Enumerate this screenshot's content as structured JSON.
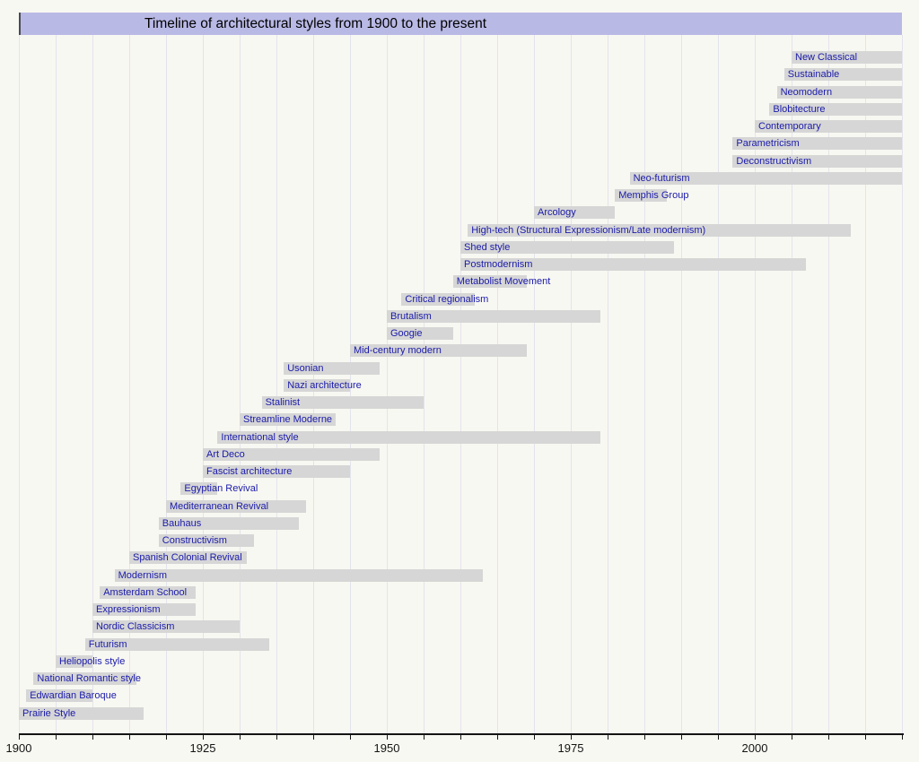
{
  "colors": {
    "page_bg": "#f8f8f2",
    "title_bg": "#b9b9e6",
    "title_border": "#4a4a55",
    "title_text": "#000000",
    "bar_fill": "#d6d6d6",
    "bar_label": "#1a1aaa",
    "gridline": "#e3e3ed",
    "axis_line": "#141414",
    "tick_label": "#141414"
  },
  "chart_data": {
    "type": "bar",
    "variant": "horizontal-timeline",
    "title": "Timeline of architectural styles from 1900 to the present",
    "xlabel": "",
    "ylabel": "",
    "x_axis": {
      "min": 1900,
      "max": 2020,
      "gridline_interval_years": 5,
      "tick_interval_years": 5,
      "tick_labels": [
        "1900",
        "1925",
        "1950",
        "1975",
        "2000"
      ],
      "tick_label_years": [
        1900,
        1925,
        1950,
        1975,
        2000
      ]
    },
    "legend": "none",
    "grid": "vertical-on",
    "note": "bars ending at 2020 run to the present (right edge of chart)",
    "styles": [
      {
        "label": "New Classical",
        "from": 2005,
        "till": 2020
      },
      {
        "label": "Sustainable",
        "from": 2004,
        "till": 2020
      },
      {
        "label": "Neomodern",
        "from": 2003,
        "till": 2020
      },
      {
        "label": "Blobitecture",
        "from": 2002,
        "till": 2020
      },
      {
        "label": "Contemporary",
        "from": 2000,
        "till": 2020
      },
      {
        "label": "Parametricism",
        "from": 1997,
        "till": 2020
      },
      {
        "label": "Deconstructivism",
        "from": 1997,
        "till": 2020
      },
      {
        "label": "Neo-futurism",
        "from": 1983,
        "till": 2020
      },
      {
        "label": "Memphis Group",
        "from": 1981,
        "till": 1988
      },
      {
        "label": "Arcology",
        "from": 1970,
        "till": 1981
      },
      {
        "label": "High-tech (Structural Expressionism/Late modernism)",
        "from": 1961,
        "till": 2013
      },
      {
        "label": "Shed style",
        "from": 1960,
        "till": 1989
      },
      {
        "label": "Postmodernism",
        "from": 1960,
        "till": 2007
      },
      {
        "label": "Metabolist Movement",
        "from": 1959,
        "till": 1969
      },
      {
        "label": "Critical regionalism",
        "from": 1952,
        "till": 1962
      },
      {
        "label": "Brutalism",
        "from": 1950,
        "till": 1979
      },
      {
        "label": "Googie",
        "from": 1950,
        "till": 1959
      },
      {
        "label": "Mid-century modern",
        "from": 1945,
        "till": 1969
      },
      {
        "label": "Usonian",
        "from": 1936,
        "till": 1949
      },
      {
        "label": "Nazi architecture",
        "from": 1936,
        "till": 1945
      },
      {
        "label": "Stalinist",
        "from": 1933,
        "till": 1955
      },
      {
        "label": "Streamline Moderne",
        "from": 1930,
        "till": 1943
      },
      {
        "label": "International style",
        "from": 1927,
        "till": 1979
      },
      {
        "label": "Art Deco",
        "from": 1925,
        "till": 1949
      },
      {
        "label": "Fascist architecture",
        "from": 1925,
        "till": 1945
      },
      {
        "label": "Egyptian Revival",
        "from": 1922,
        "till": 1927
      },
      {
        "label": "Mediterranean Revival",
        "from": 1920,
        "till": 1939
      },
      {
        "label": "Bauhaus",
        "from": 1919,
        "till": 1938
      },
      {
        "label": "Constructivism",
        "from": 1919,
        "till": 1932
      },
      {
        "label": "Spanish Colonial Revival",
        "from": 1915,
        "till": 1931
      },
      {
        "label": "Modernism",
        "from": 1913,
        "till": 1963
      },
      {
        "label": "Amsterdam School",
        "from": 1911,
        "till": 1924
      },
      {
        "label": "Expressionism",
        "from": 1910,
        "till": 1924
      },
      {
        "label": "Nordic Classicism",
        "from": 1910,
        "till": 1930
      },
      {
        "label": "Futurism",
        "from": 1909,
        "till": 1934
      },
      {
        "label": "Heliopolis style",
        "from": 1905,
        "till": 1910
      },
      {
        "label": "National Romantic style",
        "from": 1902,
        "till": 1916
      },
      {
        "label": "Edwardian Baroque",
        "from": 1901,
        "till": 1910
      },
      {
        "label": "Prairie Style",
        "from": 1900,
        "till": 1917
      }
    ]
  }
}
